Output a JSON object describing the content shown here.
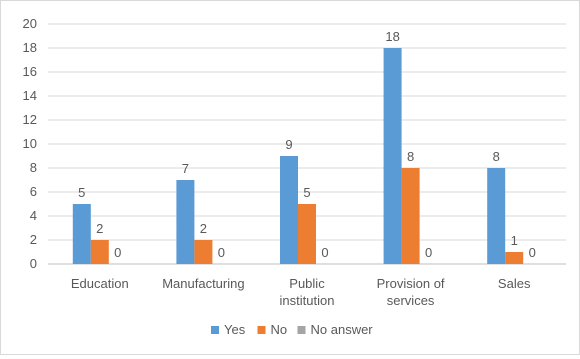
{
  "chart_data": {
    "type": "bar",
    "categories": [
      "Education",
      "Manufacturing",
      "Public institution",
      "Provision of services",
      "Sales"
    ],
    "series": [
      {
        "name": "Yes",
        "values": [
          5,
          7,
          9,
          18,
          8
        ],
        "color": "#5B9BD5"
      },
      {
        "name": "No",
        "values": [
          2,
          2,
          5,
          8,
          1
        ],
        "color": "#ED7D31"
      },
      {
        "name": "No answer",
        "values": [
          0,
          0,
          0,
          0,
          0
        ],
        "color": "#A5A5A5"
      }
    ],
    "title": "",
    "xlabel": "",
    "ylabel": "",
    "ylim": [
      0,
      20
    ],
    "ytick_step": 2,
    "grid": true,
    "data_labels": true,
    "legend_position": "bottom"
  }
}
